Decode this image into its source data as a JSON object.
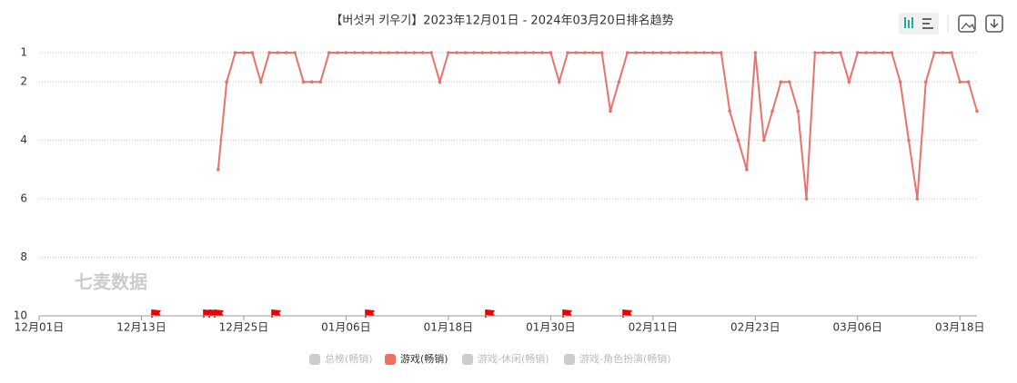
{
  "chart_data": {
    "type": "line",
    "title": "【버섯커 키우기】2023年12月01日 - 2024年03月20日排名趋势",
    "watermark": "七麦数据",
    "categories": [
      "12月01日",
      null,
      null,
      null,
      null,
      null,
      null,
      null,
      null,
      null,
      null,
      null,
      "12月13日",
      null,
      null,
      null,
      null,
      null,
      null,
      null,
      null,
      null,
      null,
      null,
      "12月25日",
      null,
      null,
      null,
      null,
      null,
      null,
      null,
      null,
      null,
      null,
      null,
      "01月06日",
      null,
      null,
      null,
      null,
      null,
      null,
      null,
      null,
      null,
      null,
      null,
      "01月18日",
      null,
      null,
      null,
      null,
      null,
      null,
      null,
      null,
      null,
      null,
      null,
      "01月30日",
      null,
      null,
      null,
      null,
      null,
      null,
      null,
      null,
      null,
      null,
      null,
      "02月11日",
      null,
      null,
      null,
      null,
      null,
      null,
      null,
      null,
      null,
      null,
      null,
      "02月23日",
      null,
      null,
      null,
      null,
      null,
      null,
      null,
      null,
      null,
      null,
      null,
      "03月06日",
      null,
      null,
      null,
      null,
      null,
      null,
      null,
      null,
      null,
      null,
      null,
      "03月18日",
      null,
      null
    ],
    "series": [
      {
        "color": "#e8736c",
        "values": [
          null,
          null,
          null,
          null,
          null,
          null,
          null,
          null,
          null,
          null,
          null,
          null,
          null,
          null,
          null,
          null,
          null,
          null,
          null,
          null,
          null,
          5,
          2,
          1,
          1,
          1,
          2,
          1,
          1,
          1,
          1,
          2,
          2,
          2,
          1,
          1,
          1,
          1,
          1,
          1,
          1,
          1,
          1,
          1,
          1,
          1,
          1,
          2,
          1,
          1,
          1,
          1,
          1,
          1,
          1,
          1,
          1,
          1,
          1,
          1,
          1,
          2,
          1,
          1,
          1,
          1,
          1,
          3,
          2,
          1,
          1,
          1,
          1,
          1,
          1,
          1,
          1,
          1,
          1,
          1,
          1,
          3,
          4,
          5,
          1,
          4,
          3,
          2,
          2,
          3,
          6,
          1,
          1,
          1,
          1,
          2,
          1,
          1,
          1,
          1,
          1,
          2,
          4,
          6,
          2,
          1,
          1,
          1,
          2,
          2,
          3
        ]
      }
    ],
    "ylim": [
      10,
      1
    ],
    "yticks": [
      1,
      2,
      4,
      6,
      8,
      10
    ],
    "grid": true,
    "legend": [
      {
        "name": "总榜(畅销)",
        "color": "#cccccc",
        "hidden": true
      },
      {
        "name": "游戏(畅销)",
        "color": "#f07060",
        "hidden": false
      },
      {
        "name": "游戏-休闲(畅销)",
        "color": "#cccccc",
        "hidden": true
      },
      {
        "name": "游戏-角色扮演(畅销)",
        "color": "#cccccc",
        "hidden": true
      }
    ]
  }
}
